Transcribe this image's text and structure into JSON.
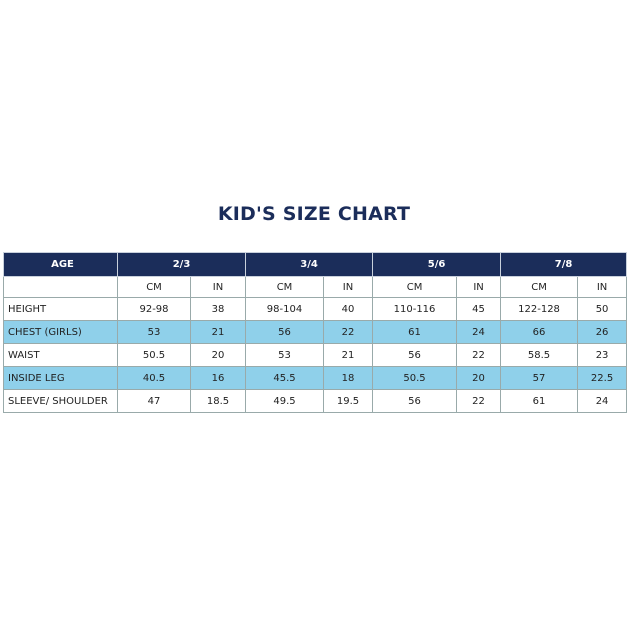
{
  "title": "KID'S SIZE CHART",
  "table": {
    "header": {
      "label": "AGE",
      "groups": [
        "2/3",
        "3/4",
        "5/6",
        "7/8"
      ]
    },
    "units": [
      "CM",
      "IN",
      "CM",
      "IN",
      "CM",
      "IN",
      "CM",
      "IN"
    ],
    "rows": [
      {
        "label": "HEIGHT",
        "cells": [
          "92-98",
          "38",
          "98-104",
          "40",
          "110-116",
          "45",
          "122-128",
          "50"
        ]
      },
      {
        "label": "CHEST (GIRLS)",
        "cells": [
          "53",
          "21",
          "56",
          "22",
          "61",
          "24",
          "66",
          "26"
        ]
      },
      {
        "label": "WAIST",
        "cells": [
          "50.5",
          "20",
          "53",
          "21",
          "56",
          "22",
          "58.5",
          "23"
        ]
      },
      {
        "label": "INSIDE LEG",
        "cells": [
          "40.5",
          "16",
          "45.5",
          "18",
          "50.5",
          "20",
          "57",
          "22.5"
        ]
      },
      {
        "label": "SLEEVE/ SHOULDER",
        "cells": [
          "47",
          "18.5",
          "49.5",
          "19.5",
          "56",
          "22",
          "61",
          "24"
        ]
      }
    ]
  }
}
